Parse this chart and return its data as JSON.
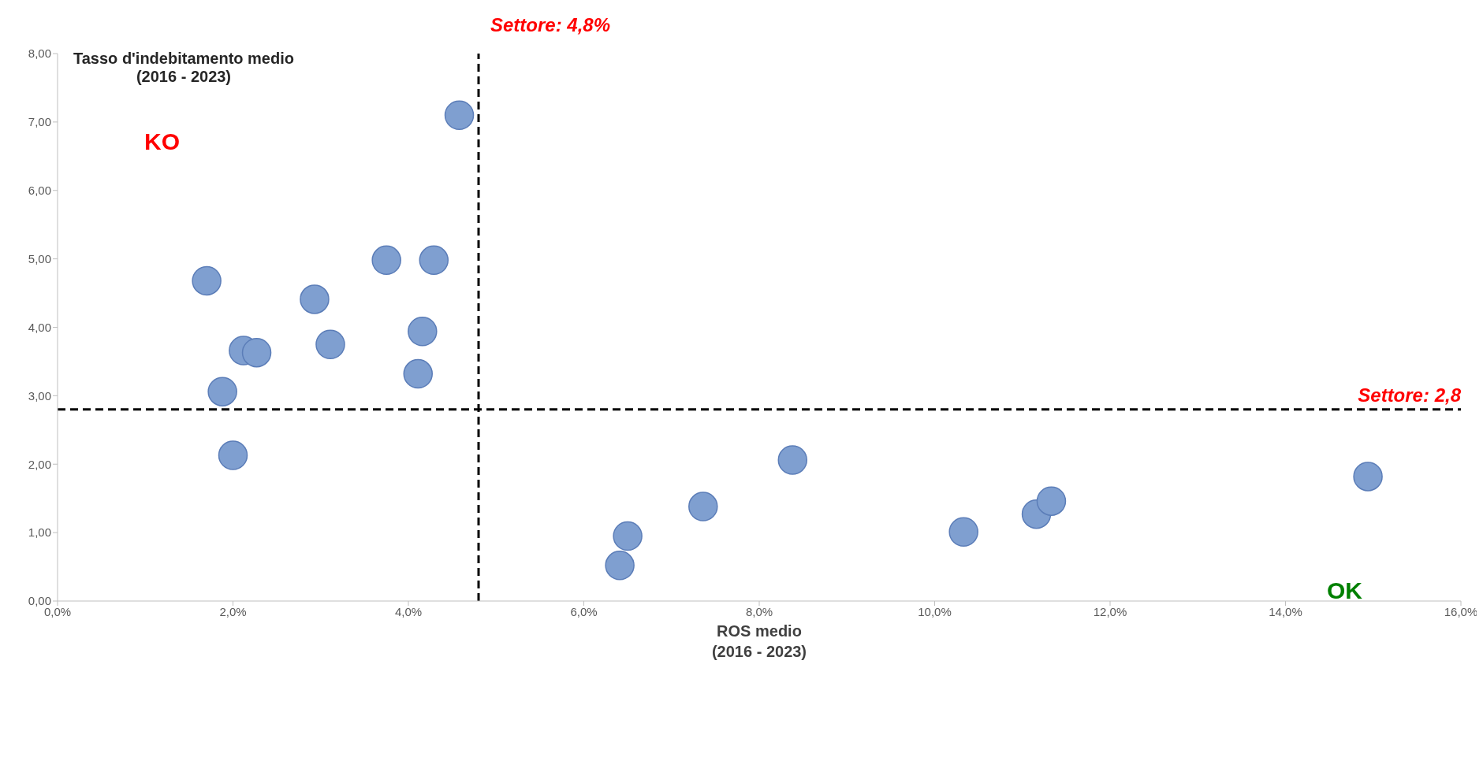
{
  "chart_data": {
    "type": "scatter",
    "xlabel": "ROS medio\n(2016 - 2023)",
    "ylabel": "Tasso d'indebitamento medio\n(2016 - 2023)",
    "x": [
      4.58,
      1.7,
      3.75,
      4.29,
      2.93,
      4.16,
      2.12,
      2.27,
      3.11,
      4.11,
      1.88,
      2.0,
      8.38,
      7.36,
      6.5,
      6.41,
      10.33,
      11.16,
      11.33,
      14.94
    ],
    "series": [
      {
        "color": "#7f9fd0",
        "values": [
          7.1,
          4.68,
          4.98,
          4.98,
          4.41,
          3.94,
          3.66,
          3.63,
          3.75,
          3.32,
          3.06,
          2.13,
          2.06,
          1.38,
          0.95,
          0.52,
          1.01,
          1.27,
          1.46,
          1.82
        ]
      }
    ],
    "xlim": [
      0,
      16
    ],
    "xticks": [
      {
        "value": 0,
        "label": "0,0%"
      },
      {
        "value": 2,
        "label": "2,0%"
      },
      {
        "value": 4,
        "label": "4,0%"
      },
      {
        "value": 6,
        "label": "6,0%"
      },
      {
        "value": 8,
        "label": "8,0%"
      },
      {
        "value": 10,
        "label": "10,0%"
      },
      {
        "value": 12,
        "label": "12,0%"
      },
      {
        "value": 14,
        "label": "14,0%"
      },
      {
        "value": 16,
        "label": "16,0%"
      }
    ],
    "ylim": [
      0,
      8
    ],
    "yticks": [
      {
        "value": 0,
        "label": "0,00"
      },
      {
        "value": 1,
        "label": "1,00"
      },
      {
        "value": 2,
        "label": "2,00"
      },
      {
        "value": 3,
        "label": "3,00"
      },
      {
        "value": 4,
        "label": "4,00"
      },
      {
        "value": 5,
        "label": "5,00"
      },
      {
        "value": 6,
        "label": "6,00"
      },
      {
        "value": 7,
        "label": "7,00"
      },
      {
        "value": 8,
        "label": "8,00"
      }
    ],
    "ref_lines": [
      {
        "axis": "x",
        "value": 4.8,
        "label": "Settore: 4,8%",
        "line_style": "dashed"
      },
      {
        "axis": "y",
        "value": 2.8,
        "label": "Settore: 2,8",
        "line_style": "dashed"
      }
    ],
    "annotations": [
      "KO",
      "OK"
    ],
    "marker": "circle",
    "grid": false,
    "legend": false
  }
}
